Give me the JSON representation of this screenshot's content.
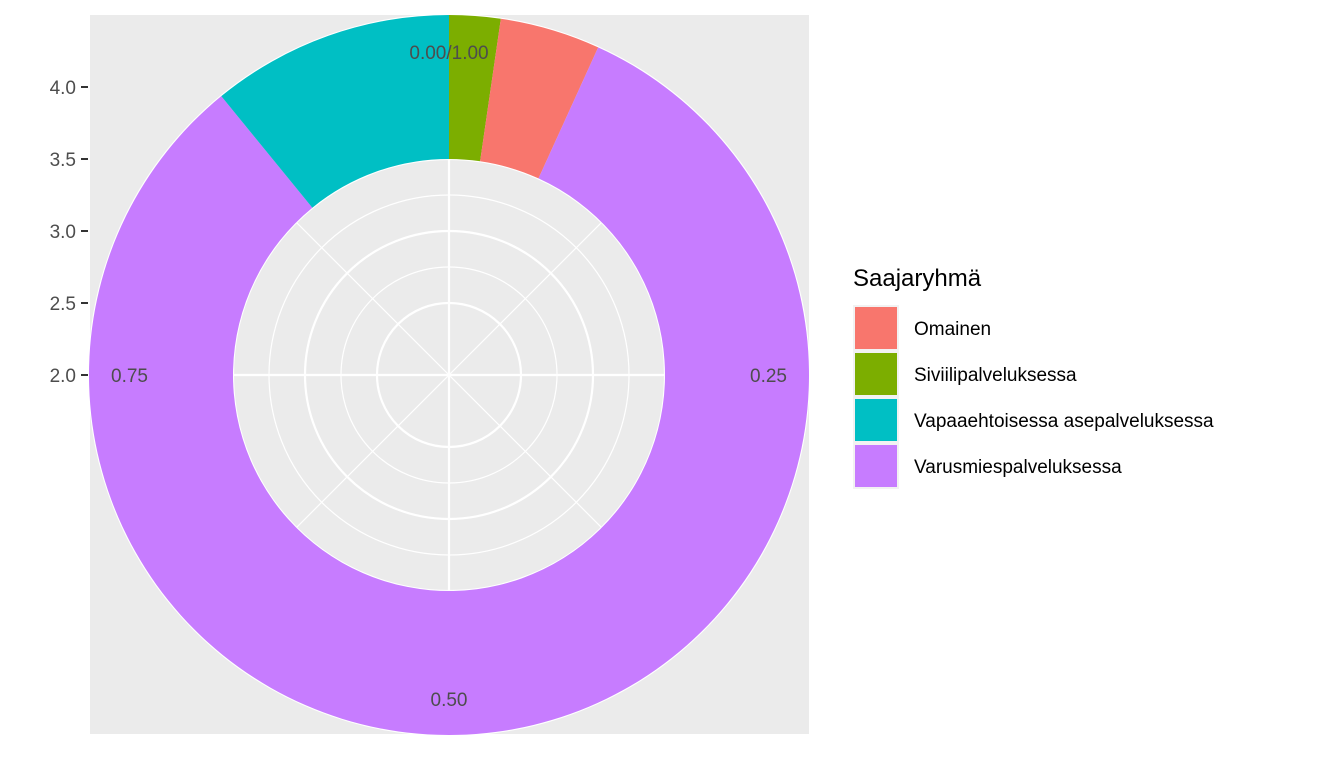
{
  "chart_data": {
    "type": "pie",
    "subtype": "donut (polar bar chart)",
    "theta_ticks": [
      "0.00/1.00",
      "0.25",
      "0.50",
      "0.75"
    ],
    "radial_ticks": [
      "2.0",
      "2.5",
      "3.0",
      "3.5",
      "4.0"
    ],
    "legend": {
      "title": "Saajaryhmä",
      "placement": "right"
    },
    "series": [
      {
        "name": "Siviilipalveluksessa",
        "value": 0.023,
        "color": "#7CAE00"
      },
      {
        "name": "Omainen",
        "value": 0.045,
        "color": "#F8766D"
      },
      {
        "name": "Varusmiespalveluksessa",
        "value": 0.823,
        "color": "#C77CFF"
      },
      {
        "name": "Vapaaehtoisessa asepalveluksessa",
        "value": 0.109,
        "color": "#00BFC4"
      }
    ],
    "legend_order": [
      "Omainen",
      "Siviilipalveluksessa",
      "Vapaaehtoisessa asepalveluksessa",
      "Varusmiespalveluksessa"
    ],
    "ring_inner": 3.0,
    "ring_outer": 4.0,
    "panel_background": "#EBEBEB",
    "grid": true
  }
}
